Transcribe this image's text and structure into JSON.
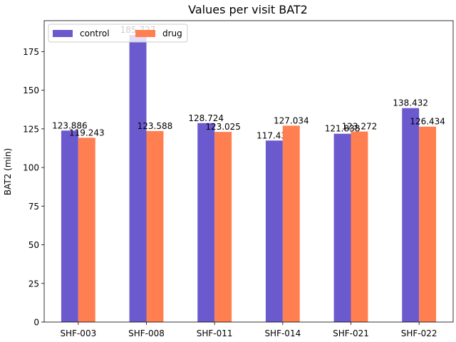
{
  "chart_data": {
    "type": "bar",
    "title": "Values per visit BAT2",
    "xlabel": "",
    "ylabel": "BAT2 (min)",
    "categories": [
      "SHF-003",
      "SHF-008",
      "SHF-011",
      "SHF-014",
      "SHF-021",
      "SHF-022"
    ],
    "series": [
      {
        "name": "control",
        "color": "#6a5acd",
        "values": [
          123.886,
          185.727,
          128.724,
          117.435,
          121.838,
          138.432
        ],
        "labels": [
          "123.886",
          "185.727",
          "128.724",
          "117.435",
          "121.838",
          "138.432"
        ]
      },
      {
        "name": "drug",
        "color": "#ff7f50",
        "values": [
          119.243,
          123.588,
          123.025,
          127.034,
          123.272,
          126.434
        ],
        "labels": [
          "119.243",
          "123.588",
          "123.025",
          "127.034",
          "123.272",
          "126.434"
        ]
      }
    ],
    "ylim": [
      0,
      195
    ],
    "yticks": [
      0,
      25,
      50,
      75,
      100,
      125,
      150,
      175
    ],
    "legend_position": "top-left",
    "grid": false
  }
}
